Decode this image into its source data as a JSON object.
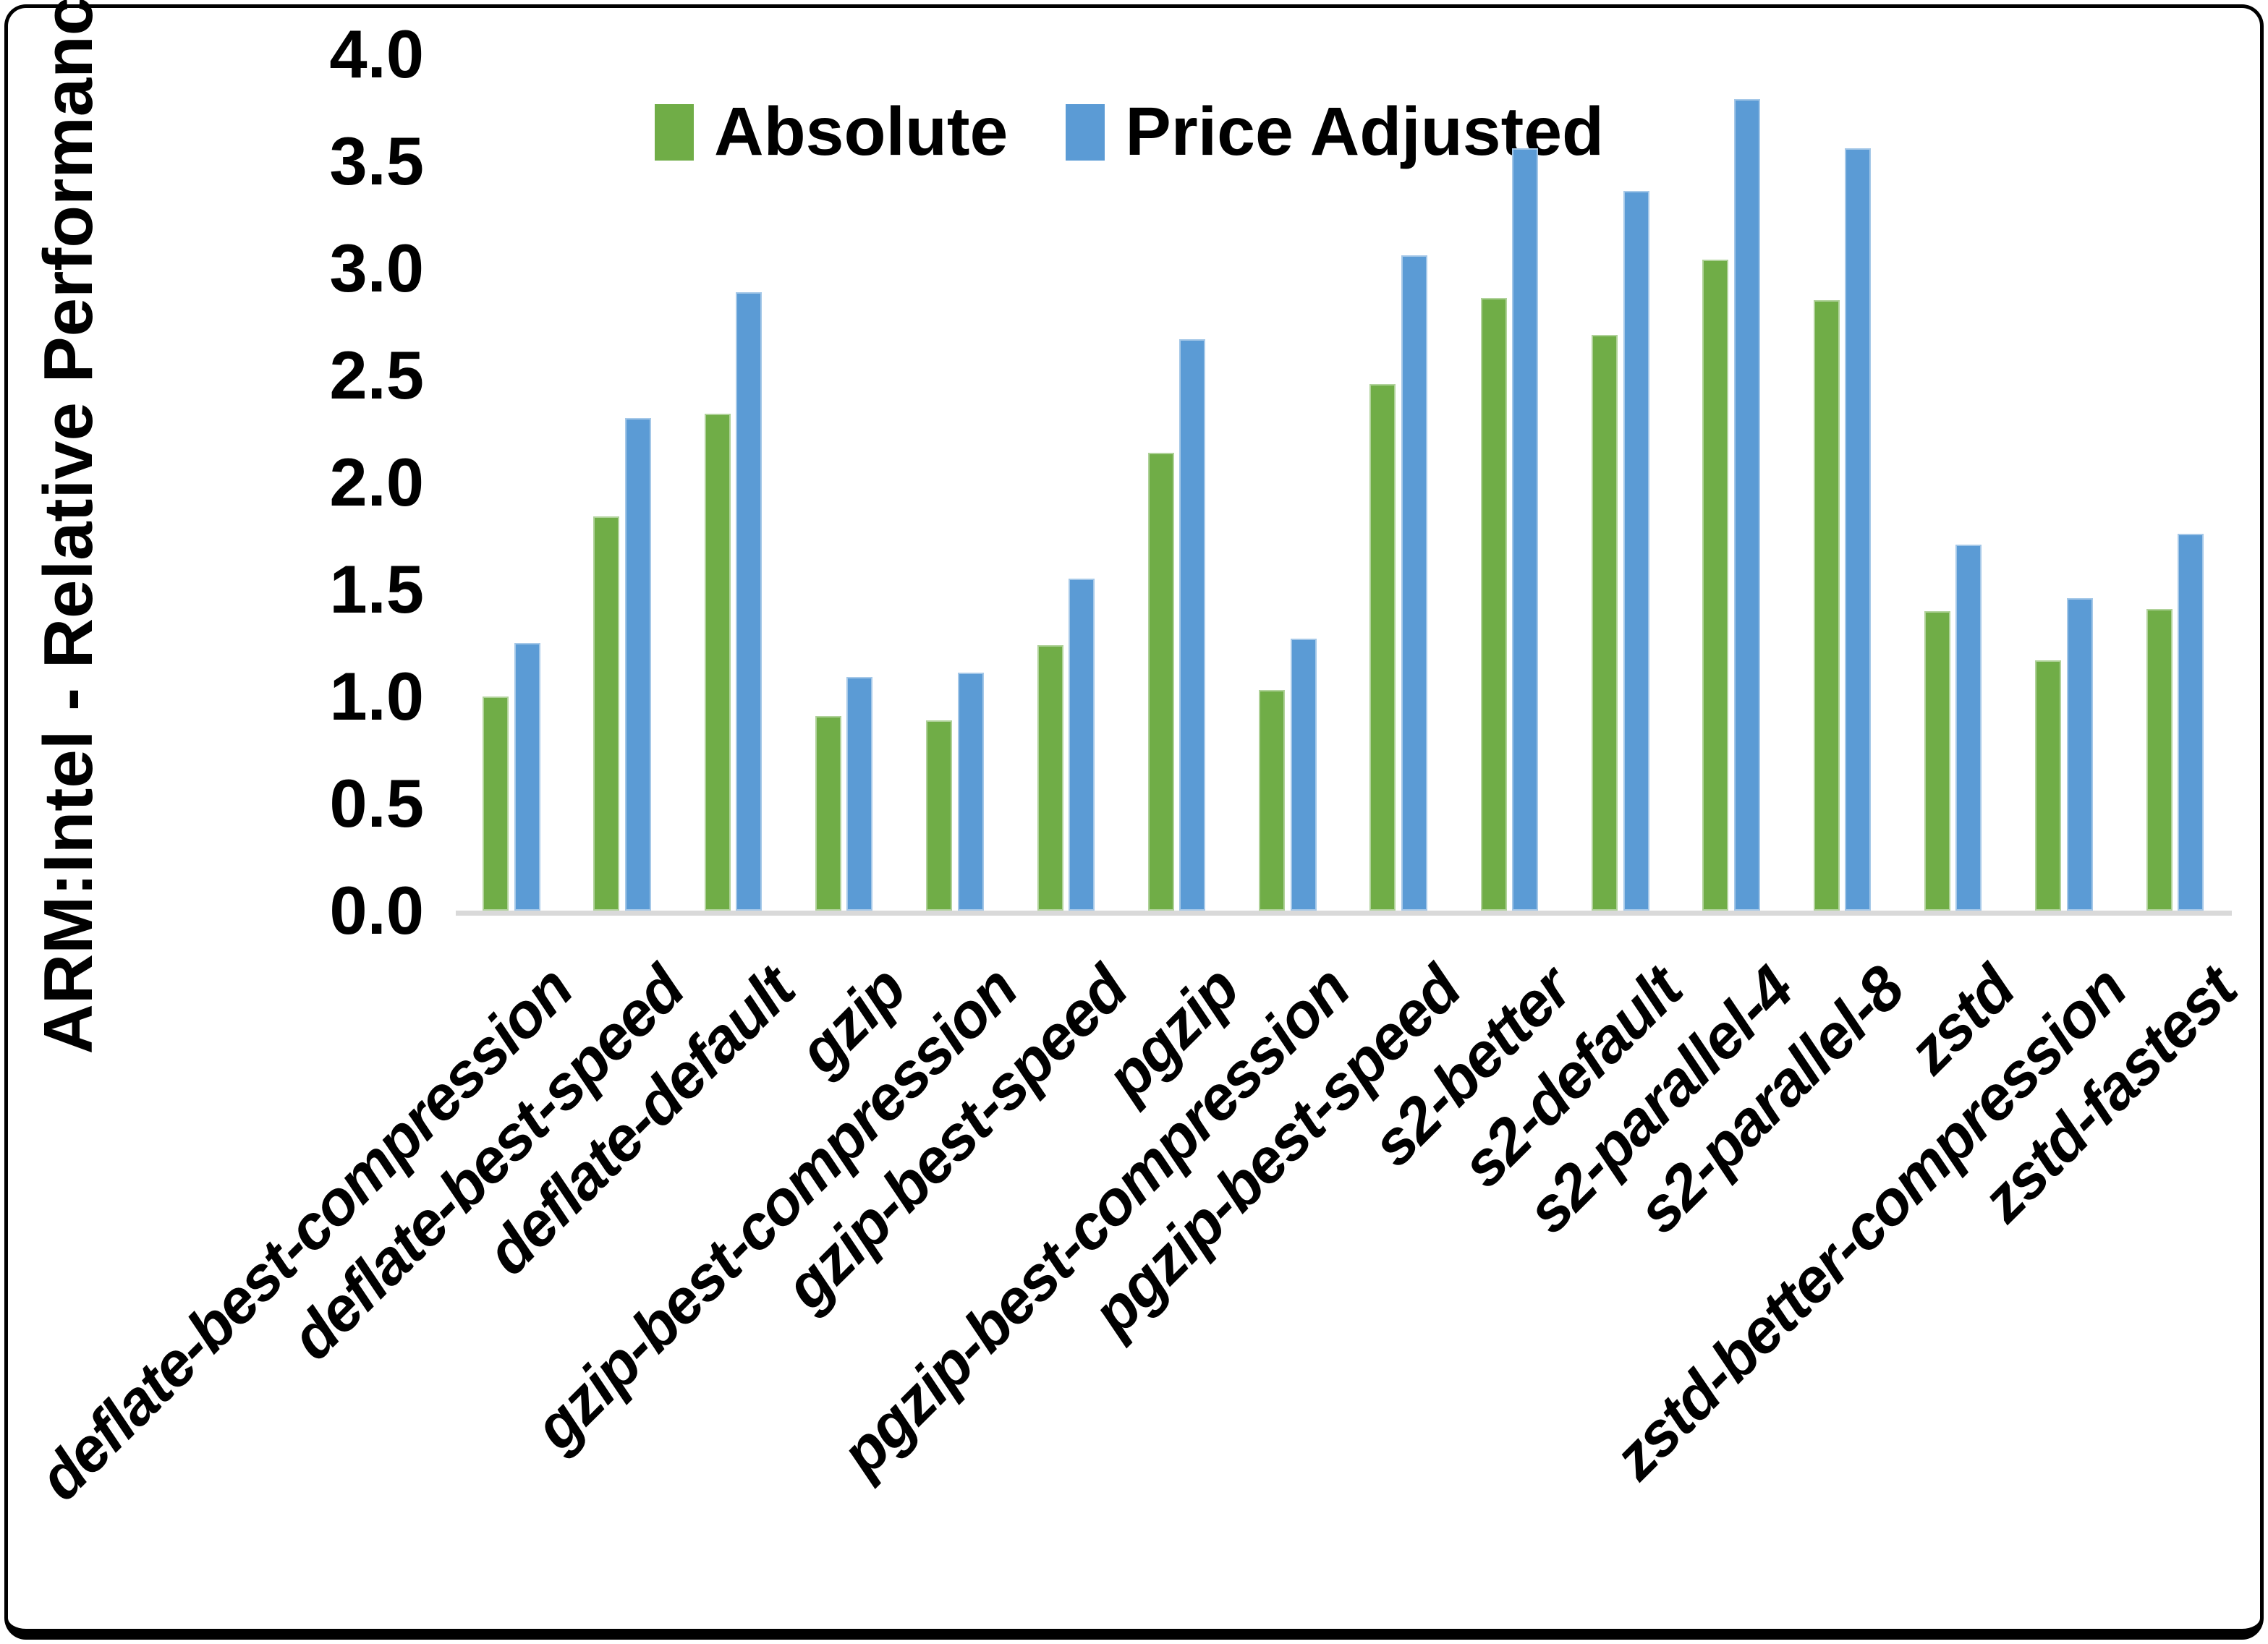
{
  "chart_data": {
    "type": "bar",
    "title": "",
    "xlabel": "",
    "ylabel": "ARM:Intel - Relative Performance",
    "ylim": [
      0.0,
      4.0
    ],
    "ytick_step": 0.5,
    "ytick_labels": [
      "0.0",
      "0.5",
      "1.0",
      "1.5",
      "2.0",
      "2.5",
      "3.0",
      "3.5",
      "4.0"
    ],
    "grid": false,
    "legend_position": "top-center",
    "categories": [
      "deflate-best-compression",
      "deflate-best-speed",
      "deflate-default",
      "gzip",
      "gzip-best-compression",
      "gzip-best-speed",
      "pgzip",
      "pgzip-best-compression",
      "pgzip-best-speed",
      "s2-better",
      "s2-default",
      "s2-parallel-4",
      "s2-parallel-8",
      "zstd",
      "zstd-better-compression",
      "zstd-fastest"
    ],
    "series": [
      {
        "name": "Absolute",
        "color": "#70AD47",
        "values": [
          1.0,
          1.84,
          2.32,
          0.91,
          0.89,
          1.24,
          2.14,
          1.03,
          2.46,
          2.86,
          2.69,
          3.04,
          2.85,
          1.4,
          1.17,
          1.41
        ]
      },
      {
        "name": "Price Adjusted",
        "color": "#5B9BD5",
        "values": [
          1.25,
          2.3,
          2.89,
          1.09,
          1.11,
          1.55,
          2.67,
          1.27,
          3.06,
          3.56,
          3.36,
          3.79,
          3.56,
          1.71,
          1.46,
          1.76
        ]
      }
    ]
  },
  "colors": {
    "axis_line": "#d9d9d9",
    "text": "#000000",
    "background": "#ffffff",
    "border": "#000000"
  }
}
